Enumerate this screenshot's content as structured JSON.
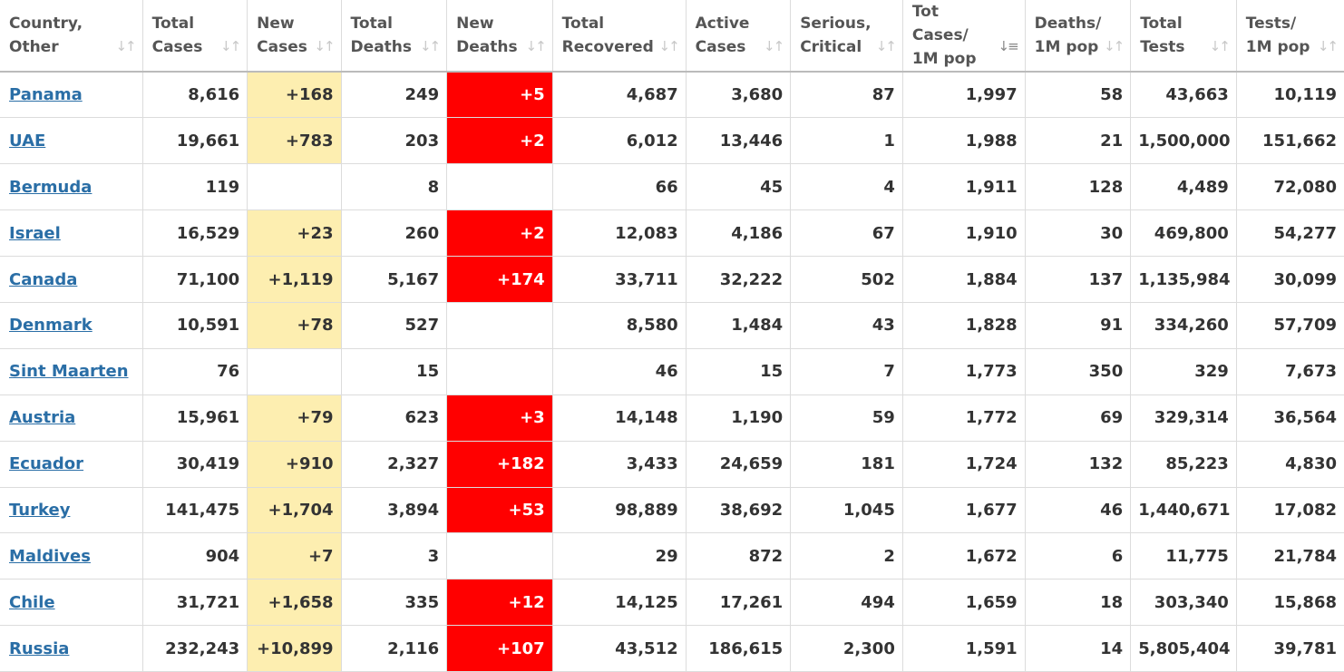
{
  "table": {
    "headers": [
      {
        "line1": "Country,",
        "line2": "Other",
        "sort_icon": "sort-neutral-icon"
      },
      {
        "line1": "Total",
        "line2": "Cases",
        "sort_icon": "sort-neutral-icon"
      },
      {
        "line1": "New",
        "line2": "Cases",
        "sort_icon": "sort-neutral-icon"
      },
      {
        "line1": "Total",
        "line2": "Deaths",
        "sort_icon": "sort-neutral-icon"
      },
      {
        "line1": "New",
        "line2": "Deaths",
        "sort_icon": "sort-neutral-icon"
      },
      {
        "line1": "Total",
        "line2": "Recovered",
        "sort_icon": "sort-neutral-icon"
      },
      {
        "line1": "Active",
        "line2": "Cases",
        "sort_icon": "sort-neutral-icon"
      },
      {
        "line1": "Serious,",
        "line2": "Critical",
        "sort_icon": "sort-neutral-icon"
      },
      {
        "line1": "Tot Cases/",
        "line2": "1M pop",
        "sort_icon": "sort-descending-icon"
      },
      {
        "line1": "Deaths/",
        "line2": "1M pop",
        "sort_icon": "sort-neutral-icon"
      },
      {
        "line1": "Total",
        "line2": "Tests",
        "sort_icon": "sort-neutral-icon"
      },
      {
        "line1": "Tests/",
        "line2": "1M pop",
        "sort_icon": "sort-neutral-icon"
      }
    ],
    "rows": [
      [
        "Panama",
        "8,616",
        "+168",
        "249",
        "+5",
        "4,687",
        "3,680",
        "87",
        "1,997",
        "58",
        "43,663",
        "10,119"
      ],
      [
        "UAE",
        "19,661",
        "+783",
        "203",
        "+2",
        "6,012",
        "13,446",
        "1",
        "1,988",
        "21",
        "1,500,000",
        "151,662"
      ],
      [
        "Bermuda",
        "119",
        "",
        "8",
        "",
        "66",
        "45",
        "4",
        "1,911",
        "128",
        "4,489",
        "72,080"
      ],
      [
        "Israel",
        "16,529",
        "+23",
        "260",
        "+2",
        "12,083",
        "4,186",
        "67",
        "1,910",
        "30",
        "469,800",
        "54,277"
      ],
      [
        "Canada",
        "71,100",
        "+1,119",
        "5,167",
        "+174",
        "33,711",
        "32,222",
        "502",
        "1,884",
        "137",
        "1,135,984",
        "30,099"
      ],
      [
        "Denmark",
        "10,591",
        "+78",
        "527",
        "",
        "8,580",
        "1,484",
        "43",
        "1,828",
        "91",
        "334,260",
        "57,709"
      ],
      [
        "Sint Maarten",
        "76",
        "",
        "15",
        "",
        "46",
        "15",
        "7",
        "1,773",
        "350",
        "329",
        "7,673"
      ],
      [
        "Austria",
        "15,961",
        "+79",
        "623",
        "+3",
        "14,148",
        "1,190",
        "59",
        "1,772",
        "69",
        "329,314",
        "36,564"
      ],
      [
        "Ecuador",
        "30,419",
        "+910",
        "2,327",
        "+182",
        "3,433",
        "24,659",
        "181",
        "1,724",
        "132",
        "85,223",
        "4,830"
      ],
      [
        "Turkey",
        "141,475",
        "+1,704",
        "3,894",
        "+53",
        "98,889",
        "38,692",
        "1,045",
        "1,677",
        "46",
        "1,440,671",
        "17,082"
      ],
      [
        "Maldives",
        "904",
        "+7",
        "3",
        "",
        "29",
        "872",
        "2",
        "1,672",
        "6",
        "11,775",
        "21,784"
      ],
      [
        "Chile",
        "31,721",
        "+1,658",
        "335",
        "+12",
        "14,125",
        "17,261",
        "494",
        "1,659",
        "18",
        "303,340",
        "15,868"
      ],
      [
        "Russia",
        "232,243",
        "+10,899",
        "2,116",
        "+107",
        "43,512",
        "186,615",
        "2,300",
        "1,591",
        "14",
        "5,805,404",
        "39,781"
      ]
    ]
  },
  "colors": {
    "new_cases_highlight": "#fdeeb0",
    "new_deaths_highlight": "#ff0000",
    "link": "#2a6ea6"
  }
}
